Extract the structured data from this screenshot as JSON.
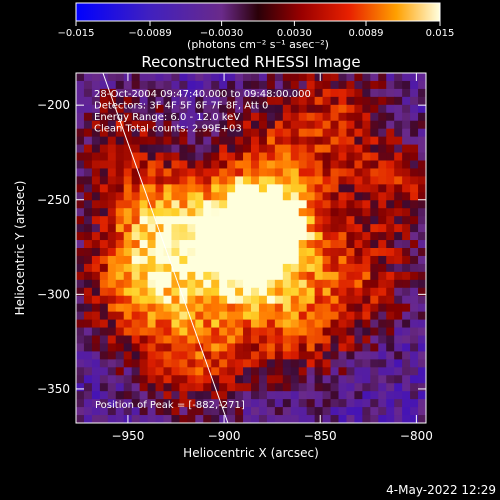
{
  "chart_data": {
    "type": "heatmap",
    "title": "Reconstructed RHESSI Image",
    "xlabel": "Heliocentric X (arcsec)",
    "ylabel": "Heliocentric Y (arcsec)",
    "xlim": [
      -977,
      -795
    ],
    "ylim": [
      -368,
      -183
    ],
    "x_ticks": [
      {
        "value": -950,
        "label": "−950"
      },
      {
        "value": -900,
        "label": "−900"
      },
      {
        "value": -850,
        "label": "−850"
      },
      {
        "value": -800,
        "label": "−800"
      }
    ],
    "y_ticks": [
      {
        "value": -200,
        "label": "−200"
      },
      {
        "value": -250,
        "label": "−250"
      },
      {
        "value": -300,
        "label": "−300"
      },
      {
        "value": -350,
        "label": "−350"
      }
    ],
    "colorbar": {
      "min": -0.015,
      "max": 0.015,
      "ticks": [
        {
          "value": -0.015,
          "label": "−0.015"
        },
        {
          "value": -0.0089,
          "label": "−0.0089"
        },
        {
          "value": -0.003,
          "label": "−0.0030"
        },
        {
          "value": 0.003,
          "label": "0.0030"
        },
        {
          "value": 0.0089,
          "label": "0.0089"
        },
        {
          "value": 0.015,
          "label": "0.015"
        }
      ],
      "unit_text": "(photons cm⁻² s⁻¹ asec⁻²)"
    },
    "annotations": [
      "28-Oct-2004 09:47:40.000 to 09:48:00.000",
      "Detectors: 3F 4F 5F 6F 7F 8F, Att 0",
      "Energy Range: 6.0 - 12.0 keV",
      "Clean    Total counts: 2.99E+03"
    ],
    "peak_label": "Position of Peak = [-882,-271]",
    "peak": {
      "x": -882,
      "y": -271
    },
    "limb_line": [
      [
        -963,
        -183
      ],
      [
        -898,
        -368
      ]
    ],
    "grid": false
  },
  "footer": {
    "timestamp": "4-May-2022 12:29"
  },
  "colors": {
    "background": "#000000",
    "text": "#ffffff"
  }
}
